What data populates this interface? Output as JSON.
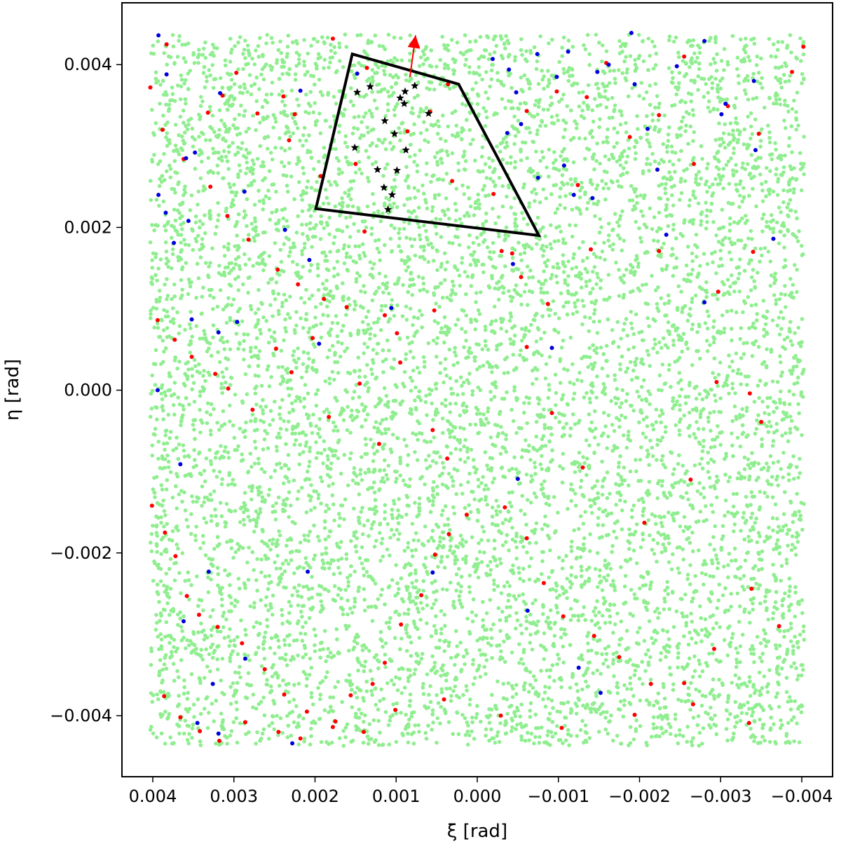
{
  "chart_data": {
    "type": "scatter",
    "title": "",
    "xlabel": "ξ [rad]",
    "ylabel": "η [rad]",
    "xlim": [
      0.00438,
      -0.00438
    ],
    "ylim": [
      -0.00475,
      0.00476
    ],
    "x_ticks": [
      0.004,
      0.003,
      0.002,
      0.001,
      0.0,
      -0.001,
      -0.002,
      -0.003,
      -0.004
    ],
    "x_tick_labels": [
      "0.004",
      "0.003",
      "0.002",
      "0.001",
      "0.000",
      "−0.001",
      "−0.002",
      "−0.003",
      "−0.004"
    ],
    "y_ticks": [
      0.004,
      0.002,
      0.0,
      -0.002,
      -0.004
    ],
    "y_tick_labels": [
      "0.004",
      "0.002",
      "0.000",
      "−0.002",
      "−0.004"
    ],
    "grid": false,
    "field_extent": {
      "xi": [
        0.00403,
        -0.00403
      ],
      "eta": [
        -0.00437,
        0.00437
      ]
    },
    "series": [
      {
        "color": "#90ee90",
        "marker": "dot",
        "count": 9000,
        "note_distribution": "uniform over field"
      },
      {
        "color": "#ff0000",
        "marker": "dot",
        "points": [
          [
            0.00403,
            0.00372
          ],
          [
            0.00383,
            0.00425
          ],
          [
            0.00332,
            0.00341
          ],
          [
            0.00314,
            0.00362
          ],
          [
            0.00297,
            0.0039
          ],
          [
            0.00271,
            0.0034
          ],
          [
            0.00239,
            0.00361
          ],
          [
            0.00225,
            0.00339
          ],
          [
            0.00232,
            0.00307
          ],
          [
            0.00193,
            0.00263
          ],
          [
            0.00178,
            0.00432
          ],
          [
            0.00136,
            0.00396
          ],
          [
            0.0015,
            0.00278
          ],
          [
            0.00139,
            0.00195
          ],
          [
            0.00086,
            0.00318
          ],
          [
            0.00058,
            0.00342
          ],
          [
            0.00036,
            0.00376
          ],
          [
            0.00031,
            0.00257
          ],
          [
            -0.0002,
            0.00241
          ],
          [
            -0.00061,
            0.00343
          ],
          [
            -0.00098,
            0.00367
          ],
          [
            -0.00124,
            0.00252
          ],
          [
            -0.00135,
            0.0036
          ],
          [
            -0.00159,
            0.00402
          ],
          [
            -0.00188,
            0.00311
          ],
          [
            -0.00224,
            0.00338
          ],
          [
            -0.00255,
            0.0041
          ],
          [
            -0.00267,
            0.00278
          ],
          [
            -0.00309,
            0.00349
          ],
          [
            -0.00347,
            0.00315
          ],
          [
            -0.00388,
            0.00391
          ],
          [
            -0.00402,
            0.00422
          ],
          [
            0.00388,
            0.0032
          ],
          [
            0.00362,
            0.00284
          ],
          [
            0.00329,
            0.0025
          ],
          [
            0.00308,
            0.00214
          ],
          [
            0.00282,
            0.00185
          ],
          [
            0.00246,
            0.00148
          ],
          [
            0.00221,
            0.0013
          ],
          [
            0.00189,
            0.00112
          ],
          [
            0.00161,
            0.00102
          ],
          [
            0.00114,
            0.00092
          ],
          [
            0.00099,
            0.0007
          ],
          [
            0.00053,
            0.00098
          ],
          [
            -0.0003,
            0.00171
          ],
          [
            -0.00043,
            0.00168
          ],
          [
            -0.00054,
            0.00139
          ],
          [
            -0.00087,
            0.00106
          ],
          [
            -0.0014,
            0.00173
          ],
          [
            -0.00224,
            0.00171
          ],
          [
            -0.00297,
            0.00121
          ],
          [
            -0.0034,
            0.0017
          ],
          [
            0.00394,
            0.00086
          ],
          [
            0.00373,
            0.00062
          ],
          [
            0.00352,
            0.00041
          ],
          [
            0.00323,
            0.0002
          ],
          [
            0.00307,
            2e-05
          ],
          [
            0.00277,
            -0.00024
          ],
          [
            0.00248,
            0.00051
          ],
          [
            0.00229,
            0.00022
          ],
          [
            0.00203,
            0.00064
          ],
          [
            0.00183,
            -0.00033
          ],
          [
            0.00145,
            8e-05
          ],
          [
            0.00121,
            -0.00066
          ],
          [
            0.00095,
            0.00034
          ],
          [
            0.00055,
            -0.00049
          ],
          [
            0.00037,
            -0.00084
          ],
          [
            -0.00061,
            0.00053
          ],
          [
            -0.00092,
            -0.00028
          ],
          [
            -0.0013,
            -0.00095
          ],
          [
            -0.00206,
            -0.00163
          ],
          [
            -0.00263,
            -0.0011
          ],
          [
            -0.00295,
            0.0001
          ],
          [
            -0.00336,
            -4e-05
          ],
          [
            -0.0035,
            -0.00039
          ],
          [
            0.00401,
            -0.00142
          ],
          [
            0.00385,
            -0.00175
          ],
          [
            0.00372,
            -0.00204
          ],
          [
            0.00358,
            -0.00253
          ],
          [
            0.00343,
            -0.00276
          ],
          [
            0.0032,
            -0.00291
          ],
          [
            0.0029,
            -0.00311
          ],
          [
            0.00262,
            -0.00343
          ],
          [
            0.00238,
            -0.00374
          ],
          [
            0.0021,
            -0.00395
          ],
          [
            0.00178,
            -0.00414
          ],
          [
            0.00156,
            -0.00375
          ],
          [
            0.00129,
            -0.00361
          ],
          [
            0.00114,
            -0.00335
          ],
          [
            0.00094,
            -0.00288
          ],
          [
            0.00069,
            -0.00252
          ],
          [
            0.00052,
            -0.00202
          ],
          [
            0.00035,
            -0.00177
          ],
          [
            0.00013,
            -0.00153
          ],
          [
            -0.00034,
            -0.00144
          ],
          [
            -0.00061,
            -0.00182
          ],
          [
            -0.00082,
            -0.00237
          ],
          [
            -0.00106,
            -0.00278
          ],
          [
            -0.00144,
            -0.00302
          ],
          [
            -0.00175,
            -0.00328
          ],
          [
            -0.00214,
            -0.00361
          ],
          [
            -0.00255,
            -0.0036
          ],
          [
            -0.00292,
            -0.00318
          ],
          [
            -0.00338,
            -0.00244
          ],
          [
            -0.00372,
            -0.0029
          ],
          [
            0.00386,
            -0.00376
          ],
          [
            0.00366,
            -0.00402
          ],
          [
            0.00342,
            -0.00419
          ],
          [
            0.00318,
            -0.00431
          ],
          [
            0.00286,
            -0.00408
          ],
          [
            0.00245,
            -0.0042
          ],
          [
            0.00218,
            -0.00428
          ],
          [
            0.00175,
            -0.00407
          ],
          [
            0.0014,
            -0.0042
          ],
          [
            0.00101,
            -0.00393
          ],
          [
            0.00041,
            -0.0038
          ],
          [
            -0.00029,
            -0.004
          ],
          [
            -0.00104,
            -0.00415
          ],
          [
            -0.00194,
            -0.00399
          ],
          [
            -0.00266,
            -0.00386
          ],
          [
            -0.00335,
            -0.00409
          ]
        ]
      },
      {
        "color": "#0000dd",
        "marker": "dot",
        "points": [
          [
            0.00393,
            0.00436
          ],
          [
            0.00383,
            0.00388
          ],
          [
            0.00393,
            0.0024
          ],
          [
            0.00384,
            0.00218
          ],
          [
            0.00359,
            0.00285
          ],
          [
            0.00348,
            0.00292
          ],
          [
            0.00356,
            0.00208
          ],
          [
            0.00374,
            0.00181
          ],
          [
            0.00317,
            0.00365
          ],
          [
            0.00287,
            0.00244
          ],
          [
            0.00237,
            0.00197
          ],
          [
            0.00218,
            0.00368
          ],
          [
            0.00148,
            0.00389
          ],
          [
            0.00207,
            0.0016
          ],
          [
            0.00106,
            0.00101
          ],
          [
            0.00195,
            0.00057
          ],
          [
            -0.00019,
            0.00407
          ],
          [
            -0.00039,
            0.00394
          ],
          [
            -0.00048,
            0.00366
          ],
          [
            -0.00098,
            0.00385
          ],
          [
            -0.00074,
            0.00413
          ],
          [
            -0.00112,
            0.00416
          ],
          [
            -0.00148,
            0.00391
          ],
          [
            -0.00162,
            0.004
          ],
          [
            -0.0019,
            0.00439
          ],
          [
            -0.00194,
            0.00376
          ],
          [
            -0.00246,
            0.00398
          ],
          [
            -0.0028,
            0.00429
          ],
          [
            -0.00306,
            0.00352
          ],
          [
            -0.00341,
            0.0038
          ],
          [
            -0.00343,
            0.00295
          ],
          [
            -0.00301,
            0.00339
          ],
          [
            -0.00222,
            0.00271
          ],
          [
            -0.0021,
            0.00321
          ],
          [
            -0.00107,
            0.00276
          ],
          [
            -0.00119,
            0.0024
          ],
          [
            -0.00142,
            0.00236
          ],
          [
            -0.00075,
            0.00261
          ],
          [
            -0.00054,
            0.00327
          ],
          [
            -0.00037,
            0.00316
          ],
          [
            -0.00044,
            0.00155
          ],
          [
            -0.00233,
            0.00191
          ],
          [
            -0.0028,
            0.00108
          ],
          [
            -0.00365,
            0.00186
          ],
          [
            -0.00092,
            0.00052
          ],
          [
            0.00352,
            0.00087
          ],
          [
            0.00319,
            0.00071
          ],
          [
            0.00296,
            0.00084
          ],
          [
            0.00394,
            0.0
          ],
          [
            0.00366,
            -0.00091
          ],
          [
            0.00331,
            -0.00223
          ],
          [
            0.00209,
            -0.00223
          ],
          [
            0.00055,
            -0.00224
          ],
          [
            -0.0005,
            -0.00109
          ],
          [
            -0.00062,
            -0.00271
          ],
          [
            0.00362,
            -0.00284
          ],
          [
            0.00286,
            -0.0033
          ],
          [
            0.00326,
            -0.00361
          ],
          [
            0.00345,
            -0.00409
          ],
          [
            0.00319,
            -0.00422
          ],
          [
            0.00228,
            -0.00434
          ],
          [
            -0.00125,
            -0.00341
          ],
          [
            -0.00152,
            -0.00372
          ]
        ]
      },
      {
        "color": "#000000",
        "marker": "star",
        "points": [
          [
            0.00148,
            0.00366
          ],
          [
            0.00132,
            0.00373
          ],
          [
            0.00089,
            0.00367
          ],
          [
            0.00095,
            0.00359
          ],
          [
            0.00077,
            0.00374
          ],
          [
            0.0009,
            0.00352
          ],
          [
            0.0006,
            0.0034
          ],
          [
            0.00114,
            0.00331
          ],
          [
            0.00102,
            0.00315
          ],
          [
            0.00151,
            0.00298
          ],
          [
            0.00088,
            0.00295
          ],
          [
            0.00123,
            0.00271
          ],
          [
            0.00099,
            0.0027
          ],
          [
            0.00115,
            0.00249
          ],
          [
            0.00105,
            0.0024
          ],
          [
            0.0011,
            0.00222
          ]
        ]
      }
    ],
    "annotations": [
      {
        "type": "rotated-rectangle",
        "color": "#000000",
        "corners": [
          [
            0.00154,
            0.00413
          ],
          [
            0.00023,
            0.00376
          ],
          [
            -0.00076,
            0.0019
          ],
          [
            0.00199,
            0.00223
          ]
        ]
      },
      {
        "type": "arrow",
        "color": "#ff0000",
        "from": [
          0.00083,
          0.00385
        ],
        "to": [
          0.00076,
          0.00436
        ]
      }
    ]
  }
}
